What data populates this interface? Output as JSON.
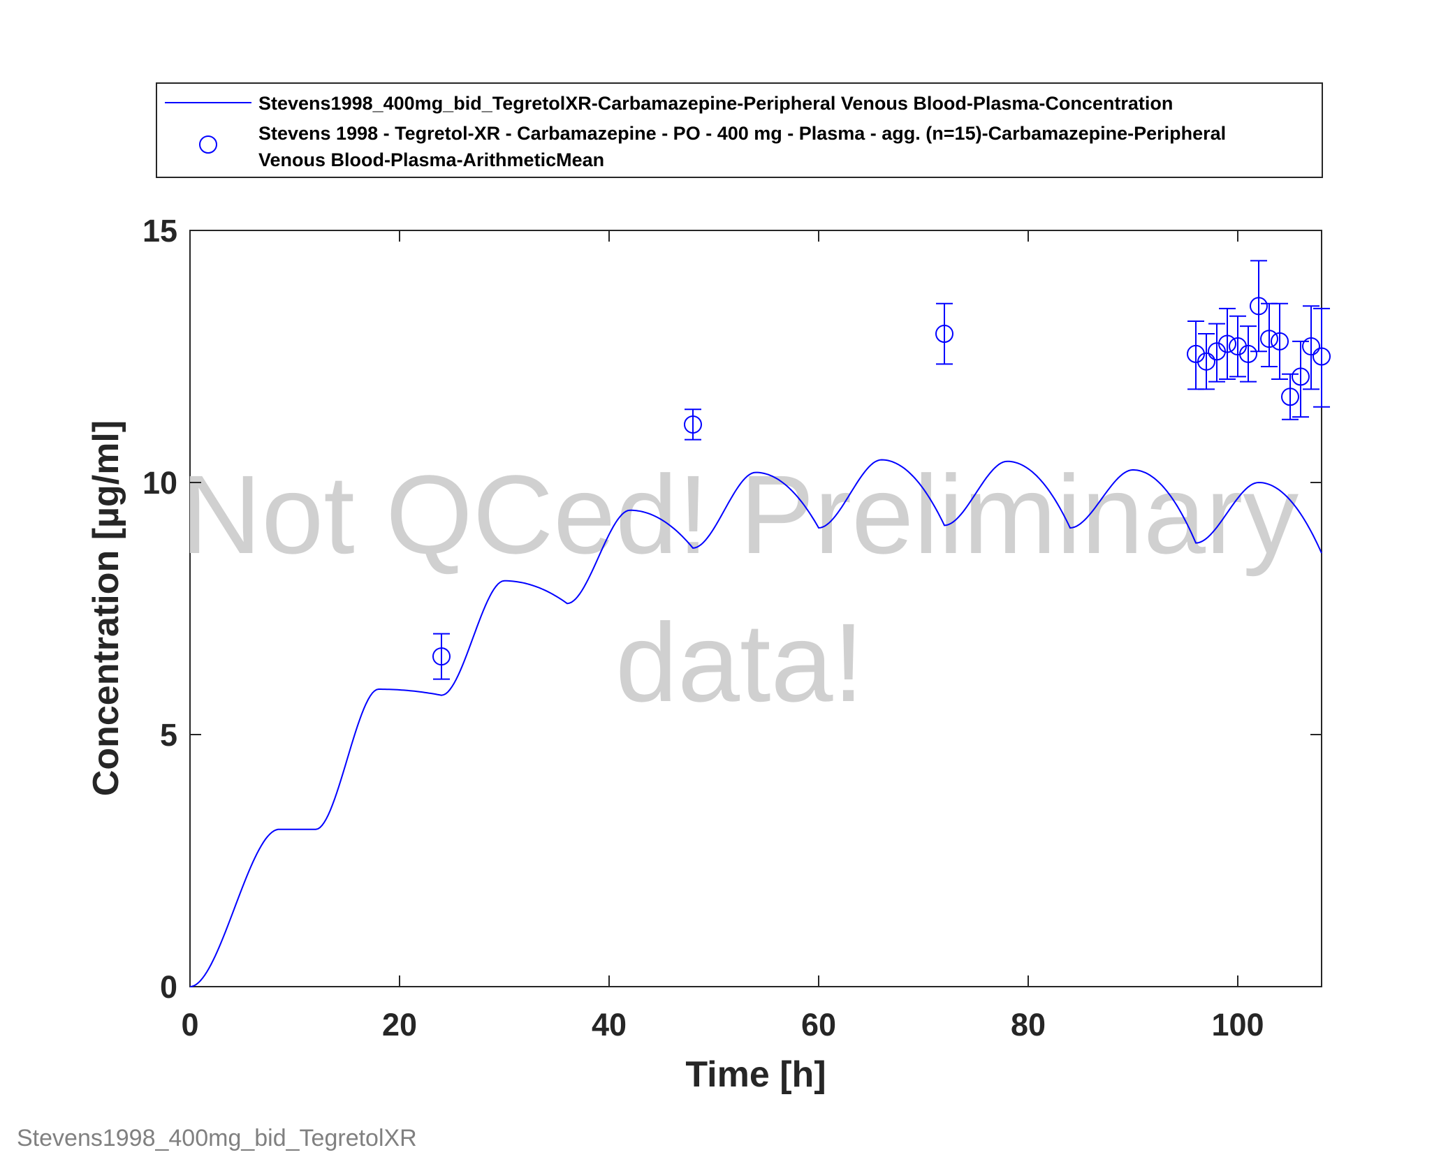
{
  "colors": {
    "series": "#0000ff",
    "axis": "#262626",
    "watermark": "#d0d0d0",
    "footer": "#808080"
  },
  "legend": {
    "placement": "top",
    "entries": [
      {
        "marker": "line",
        "lines": [
          "Stevens1998_400mg_bid_TegretolXR-Carbamazepine-Peripheral Venous Blood-Plasma-Concentration"
        ]
      },
      {
        "marker": "circle",
        "lines": [
          "Stevens 1998 - Tegretol-XR - Carbamazepine - PO - 400 mg - Plasma - agg. (n=15)-Carbamazepine-Peripheral",
          "Venous Blood-Plasma-ArithmeticMean"
        ]
      }
    ]
  },
  "watermark": {
    "lines": [
      "Not QCed! Preliminary",
      "data!"
    ]
  },
  "footer": "Stevens1998_400mg_bid_TegretolXR",
  "chart_data": {
    "type": "line",
    "title": "",
    "xlabel": "Time [h]",
    "ylabel": "Concentration [µg/ml]",
    "xlim": [
      0,
      108
    ],
    "ylim": [
      0,
      15
    ],
    "xticks": [
      0,
      20,
      40,
      60,
      80,
      100
    ],
    "yticks": [
      0,
      5,
      10,
      15
    ],
    "grid": false,
    "dose_interval_h": 12,
    "series": [
      {
        "name": "Stevens1998_400mg_bid_TegretolXR-Carbamazepine-Peripheral Venous Blood-Plasma-Concentration",
        "kind": "line",
        "trough": [
          0,
          3.12,
          5.78,
          7.6,
          8.7,
          9.1,
          9.15,
          9.1,
          8.8,
          8.6
        ],
        "peak": [
          3.12,
          5.9,
          8.05,
          9.45,
          10.2,
          10.45,
          10.42,
          10.25,
          10.0
        ]
      },
      {
        "name": "Stevens 1998 - Tegretol-XR - Carbamazepine - PO - 400 mg - Plasma - agg. (n=15)-Carbamazepine-Peripheral Venous Blood-Plasma-ArithmeticMean",
        "kind": "scatter",
        "points": [
          {
            "x": 24,
            "y": 6.55,
            "lo": 6.1,
            "hi": 7.0
          },
          {
            "x": 48,
            "y": 11.15,
            "lo": 10.85,
            "hi": 11.45
          },
          {
            "x": 72,
            "y": 12.95,
            "lo": 12.35,
            "hi": 13.55
          },
          {
            "x": 96,
            "y": 12.55,
            "lo": 11.85,
            "hi": 13.2
          },
          {
            "x": 97,
            "y": 12.4,
            "lo": 11.85,
            "hi": 12.95
          },
          {
            "x": 98,
            "y": 12.6,
            "lo": 12.0,
            "hi": 13.15
          },
          {
            "x": 99,
            "y": 12.75,
            "lo": 12.05,
            "hi": 13.45
          },
          {
            "x": 100,
            "y": 12.7,
            "lo": 12.1,
            "hi": 13.3
          },
          {
            "x": 101,
            "y": 12.55,
            "lo": 12.0,
            "hi": 13.1
          },
          {
            "x": 102,
            "y": 13.5,
            "lo": 12.6,
            "hi": 14.4
          },
          {
            "x": 103,
            "y": 12.85,
            "lo": 12.3,
            "hi": 13.55
          },
          {
            "x": 104,
            "y": 12.8,
            "lo": 12.05,
            "hi": 13.55
          },
          {
            "x": 105,
            "y": 11.7,
            "lo": 11.25,
            "hi": 12.15
          },
          {
            "x": 106,
            "y": 12.1,
            "lo": 11.3,
            "hi": 12.8
          },
          {
            "x": 107,
            "y": 12.7,
            "lo": 11.85,
            "hi": 13.5
          },
          {
            "x": 108,
            "y": 12.5,
            "lo": 11.5,
            "hi": 13.45
          }
        ]
      }
    ]
  }
}
